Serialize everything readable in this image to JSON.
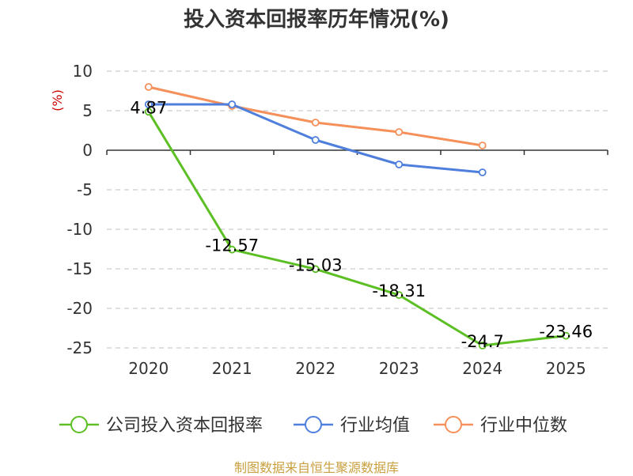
{
  "chart_data": {
    "type": "line",
    "title": "投入资本回报率历年情况(%)",
    "ylabel": "(%)",
    "xlabel": "",
    "categories": [
      "2020",
      "2021",
      "2022",
      "2023",
      "2024",
      "2025"
    ],
    "ylim": [
      -25,
      10
    ],
    "yticks": [
      10,
      5,
      0,
      -5,
      -10,
      -15,
      -20,
      -25
    ],
    "grid": true,
    "legend": "bottom",
    "series": [
      {
        "name": "公司投入资本回报率",
        "color": "#5cbf24",
        "values": [
          4.87,
          -12.57,
          -15.03,
          -18.31,
          -24.7,
          -23.46
        ],
        "labels": [
          "4.87",
          "-12.57",
          "-15.03",
          "-18.31",
          "-24.7",
          "-23.46"
        ]
      },
      {
        "name": "行业均值",
        "color": "#4f7fdc",
        "values": [
          5.8,
          5.8,
          1.3,
          -1.8,
          -2.8,
          null
        ]
      },
      {
        "name": "行业中位数",
        "color": "#f5905a",
        "values": [
          8.0,
          5.6,
          3.5,
          2.3,
          0.6,
          null
        ]
      }
    ]
  },
  "footer": {
    "source": "制图数据来自恒生聚源数据库"
  }
}
